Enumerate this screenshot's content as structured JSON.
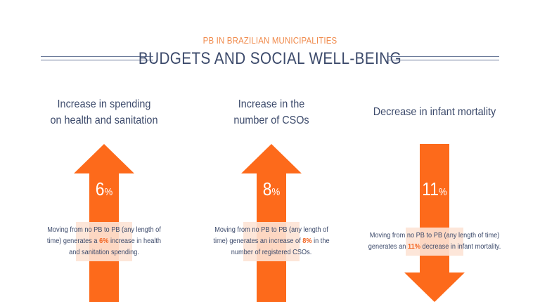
{
  "header": {
    "subtitle": "PB IN BRAZILIAN MUNICIPALITIES",
    "title": "BUDGETS AND SOCIAL WELL-BEING"
  },
  "colors": {
    "accent": "#f26522",
    "arrow_fill": "#fd6a1b",
    "text": "#3c4a6b",
    "subtitle": "#f08a4b"
  },
  "cards": [
    {
      "heading_line1": "Increase in spending",
      "heading_line2": "on health and sanitation",
      "direction": "up",
      "value": "6",
      "unit": "%",
      "note_line1": "Moving from no PB to PB (any length of",
      "note_line2_pre": "time) generates a ",
      "note_value": "6%",
      "note_line2_post": " increase in health",
      "note_line3": "and sanitation spending."
    },
    {
      "heading_line1": "Increase in the",
      "heading_line2": "number of CSOs",
      "direction": "up",
      "value": "8",
      "unit": "%",
      "note_line1": "Moving from no PB to PB (any length of",
      "note_line2_pre": "time) generates an increase of ",
      "note_value": "8%",
      "note_line2_post": " in the",
      "note_line3": "number of registered CSOs."
    },
    {
      "heading_line1": "Decrease in infant mortality",
      "direction": "down",
      "value": "11",
      "unit": "%",
      "note_line1": "Moving from no PB to PB (any length of time)",
      "note_line2_pre": "generates an ",
      "note_value": "11%",
      "note_line2_post": " decrease in infant mortality."
    }
  ]
}
